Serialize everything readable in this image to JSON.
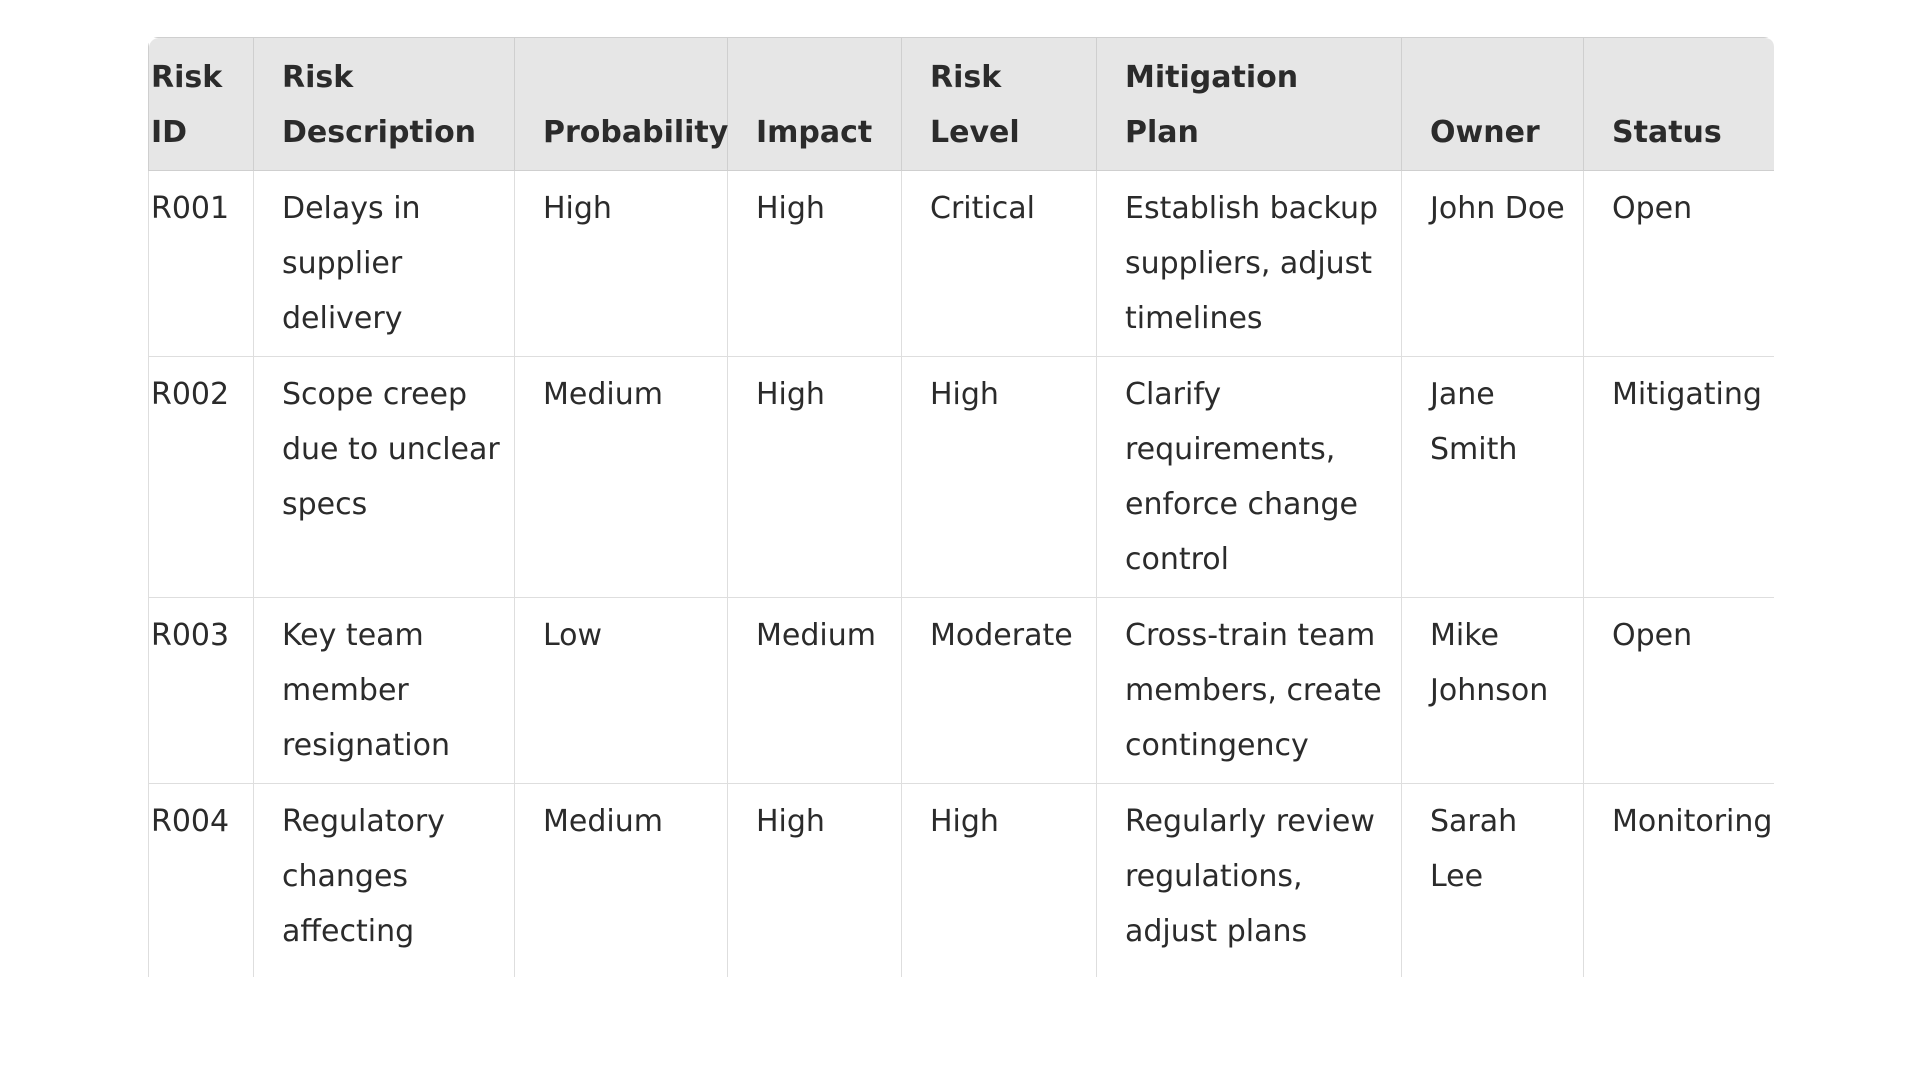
{
  "table": {
    "headers": {
      "risk_id": "Risk ID",
      "risk_description": "Risk Description",
      "probability": "Probability",
      "impact": "Impact",
      "risk_level": "Risk Level",
      "mitigation_plan": "Mitigation Plan",
      "owner": "Owner",
      "status": "Status"
    },
    "rows": [
      {
        "risk_id": "R001",
        "risk_description": "Delays in supplier delivery",
        "probability": "High",
        "impact": "High",
        "risk_level": "Critical",
        "mitigation_plan": "Establish backup suppliers, adjust timelines",
        "owner": "John Doe",
        "status": "Open"
      },
      {
        "risk_id": "R002",
        "risk_description": "Scope creep due to unclear specs",
        "probability": "Medium",
        "impact": "High",
        "risk_level": "High",
        "mitigation_plan": "Clarify requirements, enforce change control",
        "owner": "Jane Smith",
        "status": "Mitigating"
      },
      {
        "risk_id": "R003",
        "risk_description": "Key team member resignation",
        "probability": "Low",
        "impact": "Medium",
        "risk_level": "Moderate",
        "mitigation_plan": "Cross-train team members, create contingency",
        "owner": "Mike Johnson",
        "status": "Open"
      },
      {
        "risk_id": "R004",
        "risk_description": "Regulatory changes affecting scope",
        "probability": "Medium",
        "impact": "High",
        "risk_level": "High",
        "mitigation_plan": "Regularly review regulations, adjust plans",
        "owner": "Sarah Lee",
        "status": "Monitoring"
      }
    ]
  },
  "colors": {
    "header_background": "#e6e6e6",
    "border": "#dedede",
    "text": "#2b2b2b"
  }
}
